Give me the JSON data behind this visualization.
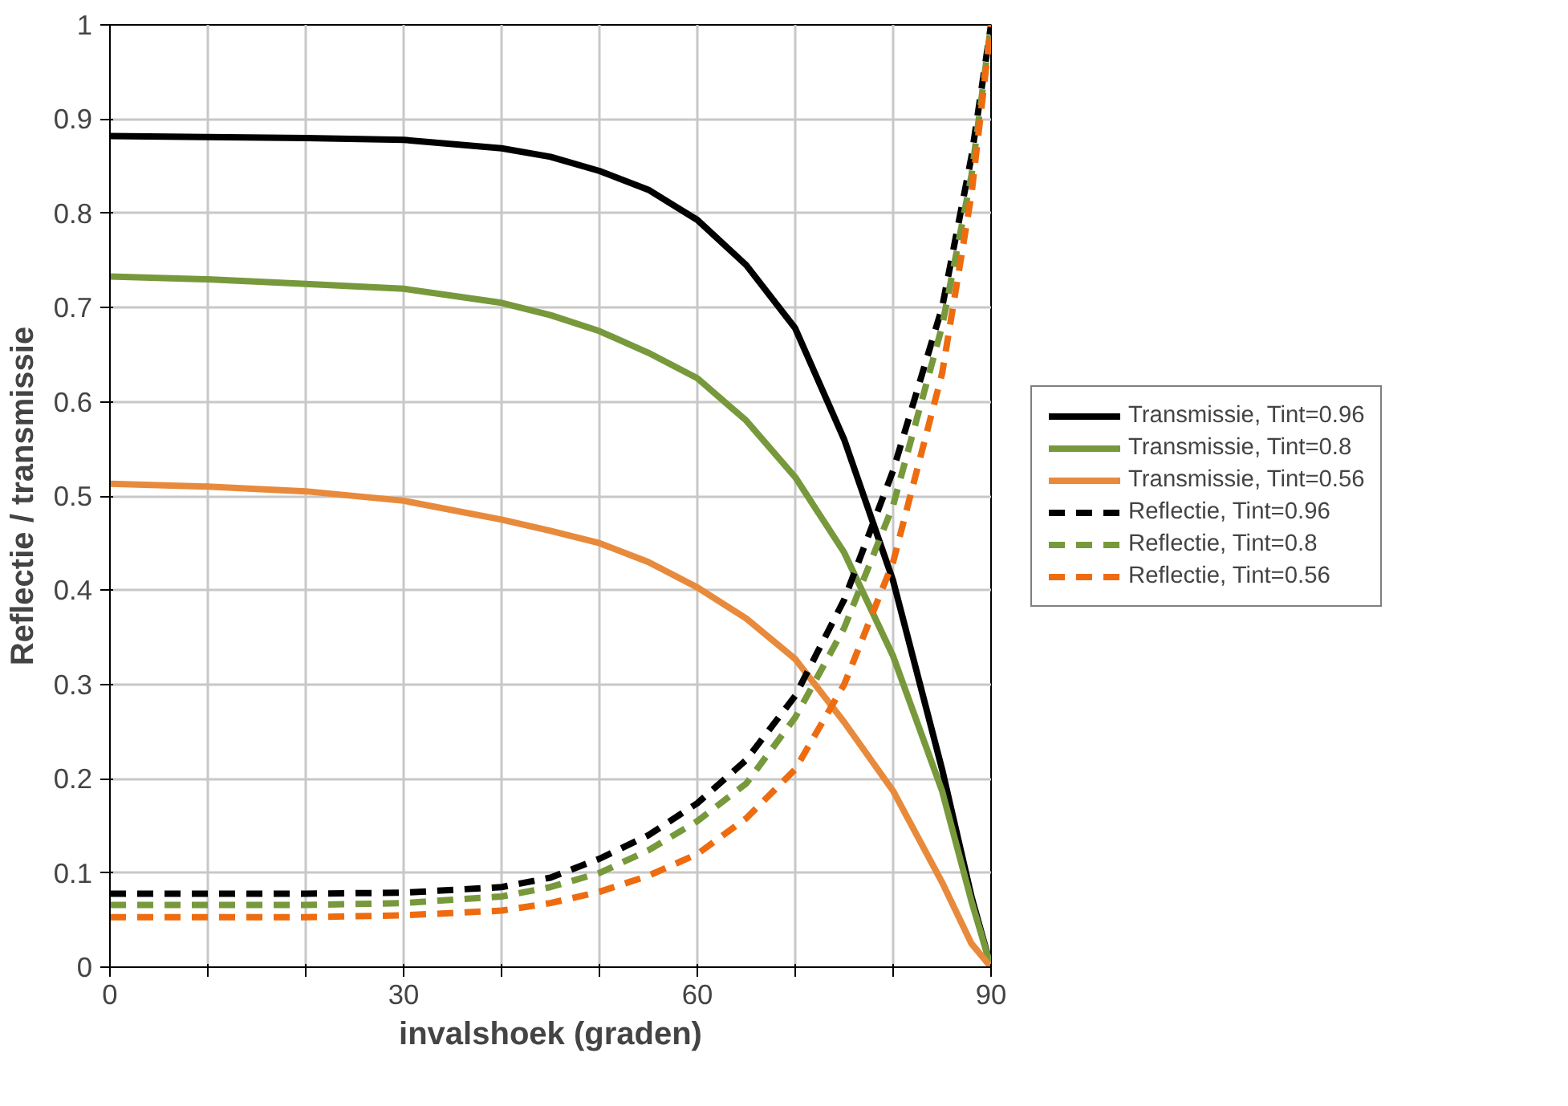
{
  "chart_data": {
    "type": "line",
    "xlabel": "invalshoek (graden)",
    "ylabel": "Reflectie / transmissie",
    "x": [
      0,
      10,
      20,
      30,
      40,
      45,
      50,
      55,
      60,
      65,
      70,
      75,
      80,
      85,
      88,
      90
    ],
    "series": [
      {
        "name": "Transmissie, Tint=0.96",
        "color": "#000000",
        "line_style": "solid",
        "values": [
          0.882,
          0.881,
          0.88,
          0.878,
          0.869,
          0.86,
          0.845,
          0.825,
          0.793,
          0.745,
          0.678,
          0.56,
          0.41,
          0.21,
          0.075,
          0
        ]
      },
      {
        "name": "Transmissie, Tint=0.8",
        "color": "#77993c",
        "line_style": "solid",
        "values": [
          0.733,
          0.73,
          0.725,
          0.72,
          0.705,
          0.692,
          0.675,
          0.652,
          0.625,
          0.58,
          0.52,
          0.44,
          0.33,
          0.187,
          0.07,
          0
        ]
      },
      {
        "name": "Transmissie, Tint=0.56",
        "color": "#e88a3c",
        "line_style": "solid",
        "values": [
          0.513,
          0.51,
          0.505,
          0.495,
          0.475,
          0.463,
          0.45,
          0.43,
          0.403,
          0.37,
          0.327,
          0.26,
          0.187,
          0.09,
          0.025,
          0
        ]
      },
      {
        "name": "Reflectie, Tint=0.96",
        "color": "#000000",
        "line_style": "dashed",
        "values": [
          0.078,
          0.078,
          0.078,
          0.079,
          0.085,
          0.095,
          0.115,
          0.14,
          0.174,
          0.22,
          0.288,
          0.39,
          0.527,
          0.7,
          0.86,
          1
        ]
      },
      {
        "name": "Reflectie, Tint=0.8",
        "color": "#77993c",
        "line_style": "dashed",
        "values": [
          0.066,
          0.066,
          0.066,
          0.068,
          0.075,
          0.085,
          0.1,
          0.124,
          0.155,
          0.195,
          0.265,
          0.36,
          0.49,
          0.68,
          0.84,
          1
        ]
      },
      {
        "name": "Reflectie, Tint=0.56",
        "color": "#ee6c0f",
        "line_style": "dashed",
        "values": [
          0.053,
          0.053,
          0.053,
          0.055,
          0.06,
          0.068,
          0.08,
          0.097,
          0.12,
          0.158,
          0.21,
          0.3,
          0.43,
          0.63,
          0.82,
          1
        ]
      }
    ],
    "xlim": [
      0,
      90
    ],
    "ylim": [
      0,
      1
    ],
    "xticks": [
      0,
      {
        "value": 10,
        "label": null
      },
      {
        "value": 20,
        "label": null
      },
      30,
      {
        "value": 40,
        "label": null
      },
      {
        "value": 50,
        "label": null
      },
      60,
      {
        "value": 70,
        "label": null
      },
      {
        "value": 80,
        "label": null
      },
      90
    ],
    "yticks": [
      0,
      0.1,
      0.2,
      0.3,
      0.4,
      0.5,
      0.6,
      0.7,
      0.8,
      0.9,
      1
    ],
    "grid": true,
    "legend": "right",
    "marker": "none"
  }
}
